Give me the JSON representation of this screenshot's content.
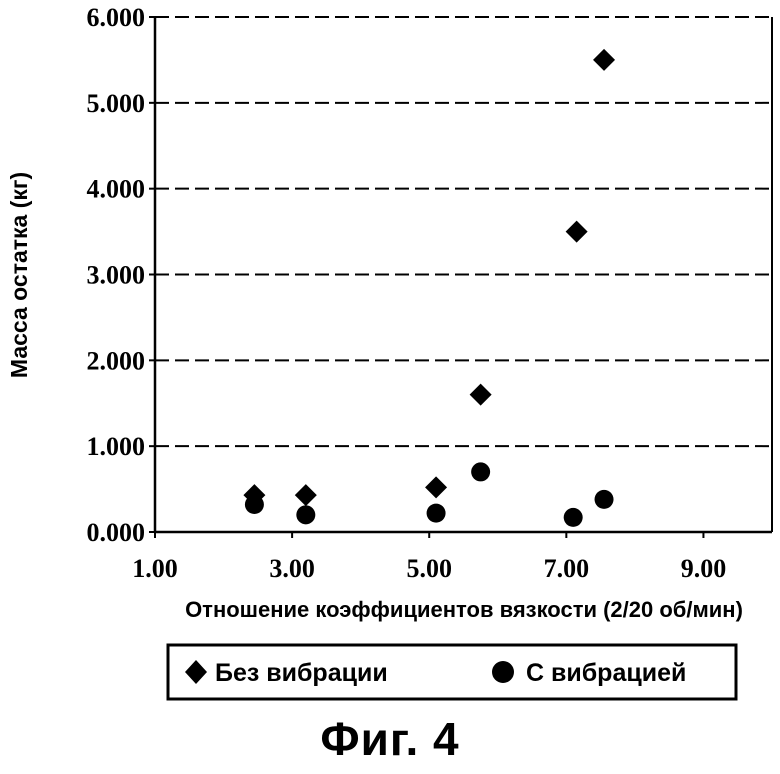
{
  "chart_data": {
    "type": "scatter",
    "xlabel": "Отношение коэффициентов вязкости (2/20 об/мин)",
    "ylabel": "Масса остатка (кг)",
    "xlim": [
      1.0,
      10.0
    ],
    "ylim": [
      0.0,
      6.0
    ],
    "x_ticks": [
      1.0,
      3.0,
      5.0,
      7.0,
      9.0
    ],
    "x_tick_labels": [
      "1.00",
      "3.00",
      "5.00",
      "7.00",
      "9.00"
    ],
    "y_ticks": [
      0,
      1,
      2,
      3,
      4,
      5,
      6
    ],
    "y_tick_labels": [
      "0.000",
      "1.000",
      "2.000",
      "3.000",
      "4.000",
      "5.000",
      "6.000"
    ],
    "grid": "horizontal dashed",
    "legend_position": "bottom",
    "series": [
      {
        "name": "Без вибрации",
        "marker": "diamond",
        "color": "#000000",
        "points": [
          [
            2.45,
            0.43
          ],
          [
            3.2,
            0.43
          ],
          [
            5.1,
            0.52
          ],
          [
            5.75,
            1.6
          ],
          [
            7.15,
            3.5
          ],
          [
            7.55,
            5.5
          ]
        ]
      },
      {
        "name": "С вибрацией",
        "marker": "circle",
        "color": "#000000",
        "points": [
          [
            2.45,
            0.32
          ],
          [
            3.2,
            0.2
          ],
          [
            5.1,
            0.22
          ],
          [
            5.75,
            0.7
          ],
          [
            7.1,
            0.17
          ],
          [
            7.55,
            0.38
          ]
        ]
      }
    ]
  },
  "caption": "Фиг. 4"
}
